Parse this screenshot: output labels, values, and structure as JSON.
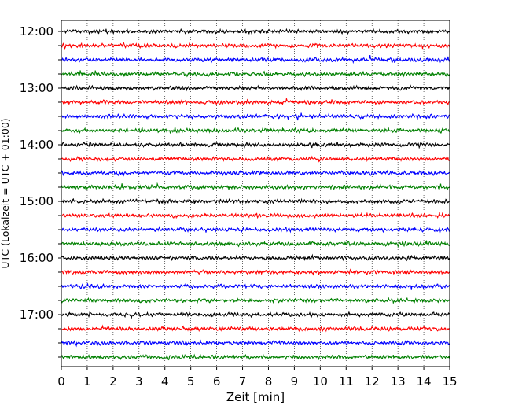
{
  "chart_data": {
    "type": "line",
    "title": "",
    "xlabel": "Zeit  [min]",
    "ylabel": "UTC (Lokalzeit = UTC + 01:00)",
    "xlim": [
      0,
      15
    ],
    "x_ticks": [
      0,
      1,
      2,
      3,
      4,
      5,
      6,
      7,
      8,
      9,
      10,
      11,
      12,
      13,
      14,
      15
    ],
    "x_tick_labels": [
      "0",
      "1",
      "2",
      "3",
      "4",
      "5",
      "6",
      "7",
      "8",
      "9",
      "10",
      "11",
      "12",
      "13",
      "14",
      "15"
    ],
    "y_tick_labels": [
      "12:00",
      "13:00",
      "14:00",
      "15:00",
      "16:00",
      "17:00"
    ],
    "grid": "vertical dotted",
    "trace_colors": [
      "#000000",
      "#ff0000",
      "#0000ff",
      "#008000"
    ],
    "traces": [
      {
        "start": "12:00"
      },
      {
        "start": "12:15"
      },
      {
        "start": "12:30"
      },
      {
        "start": "12:45"
      },
      {
        "start": "13:00"
      },
      {
        "start": "13:15"
      },
      {
        "start": "13:30"
      },
      {
        "start": "13:45"
      },
      {
        "start": "14:00"
      },
      {
        "start": "14:15"
      },
      {
        "start": "14:30"
      },
      {
        "start": "14:45"
      },
      {
        "start": "15:00"
      },
      {
        "start": "15:15"
      },
      {
        "start": "15:30"
      },
      {
        "start": "15:45"
      },
      {
        "start": "16:00"
      },
      {
        "start": "16:15"
      },
      {
        "start": "16:30"
      },
      {
        "start": "16:45"
      },
      {
        "start": "17:00"
      },
      {
        "start": "17:15"
      },
      {
        "start": "17:30"
      },
      {
        "start": "17:45"
      }
    ]
  }
}
